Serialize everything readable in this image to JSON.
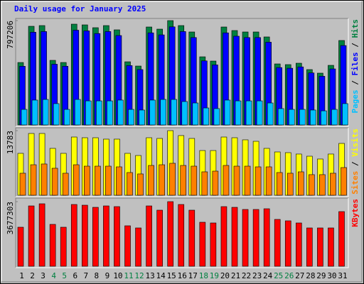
{
  "chart_data": {
    "type": "bar",
    "title": "Daily usage for January 2025",
    "title_color": "#0000FF",
    "categories": [
      "1",
      "2",
      "3",
      "4",
      "5",
      "6",
      "7",
      "8",
      "9",
      "10",
      "11",
      "12",
      "13",
      "14",
      "15",
      "16",
      "17",
      "18",
      "19",
      "20",
      "21",
      "22",
      "23",
      "24",
      "25",
      "26",
      "27",
      "28",
      "29",
      "30",
      "31"
    ],
    "category_colors": [
      "#000000",
      "#000000",
      "#000000",
      "#008040",
      "#008040",
      "#000000",
      "#000000",
      "#000000",
      "#000000",
      "#000000",
      "#008040",
      "#008040",
      "#000000",
      "#000000",
      "#000000",
      "#000000",
      "#000000",
      "#008040",
      "#008040",
      "#000000",
      "#000000",
      "#000000",
      "#000000",
      "#000000",
      "#008040",
      "#008040",
      "#000000",
      "#000000",
      "#000000",
      "#000000",
      "#000000"
    ],
    "legend_separator": " / ",
    "panels": [
      {
        "ylim": [
          0,
          797206
        ],
        "yticks": [
          797206
        ],
        "series": [
          {
            "name": "Hits",
            "color": "#008040",
            "values": [
              477000,
              753800,
              759200,
              493500,
              477200,
              770100,
              764600,
              743000,
              759200,
              726700,
              482600,
              450100,
              748400,
              732100,
              797206,
              759200,
              710400,
              520600,
              488100,
              748400,
              721300,
              710400,
              710400,
              672500,
              466400,
              461000,
              471800,
              423000,
              395900,
              455500,
              645300
            ]
          },
          {
            "name": "Files",
            "color": "#0000FF",
            "values": [
              448400,
              708600,
              713600,
              463900,
              448600,
              723900,
              718700,
              698400,
              713600,
              683100,
              453600,
              423100,
              703500,
              688200,
              749400,
              713600,
              667800,
              489400,
              458800,
              703500,
              678000,
              667800,
              667800,
              632200,
              438400,
              433300,
              443500,
              397600,
              372100,
              428200,
              606600
            ]
          },
          {
            "name": "Pages",
            "color": "#00C0FF",
            "values": [
              119000,
              190000,
              195000,
              163000,
              119000,
              195000,
              184000,
              184000,
              184000,
              190000,
              119000,
              114000,
              190000,
              195000,
              195000,
              179000,
              168000,
              130000,
              125000,
              190000,
              184000,
              184000,
              184000,
              168000,
              125000,
              119000,
              119000,
              114000,
              108000,
              119000,
              163000
            ]
          }
        ]
      },
      {
        "ylim": [
          0,
          13783
        ],
        "yticks": [
          13783
        ],
        "series": [
          {
            "name": "Visits",
            "color": "#FFFF00",
            "values": [
              8940,
              13180,
              13180,
              10000,
              8940,
              12420,
              12270,
              12270,
              11970,
              11970,
              8940,
              8480,
              12270,
              12120,
              13783,
              12730,
              12120,
              9540,
              9540,
              12420,
              12270,
              11820,
              11510,
              10000,
              9240,
              9090,
              8790,
              8330,
              7730,
              8790,
              11060
            ]
          },
          {
            "name": "Sites",
            "color": "#FF8000",
            "values": [
              4700,
              6510,
              6670,
              5760,
              4700,
              6510,
              6210,
              6210,
              6210,
              6060,
              4850,
              4550,
              6360,
              6510,
              6820,
              6360,
              6210,
              5000,
              5150,
              6360,
              6210,
              6210,
              6060,
              6060,
              4850,
              4700,
              5000,
              4400,
              4400,
              4700,
              5910
            ]
          }
        ]
      },
      {
        "ylim": [
          0,
          3677303
        ],
        "yticks": [
          3677303
        ],
        "series": [
          {
            "name": "KBytes",
            "color": "#FF0000",
            "values": [
              2222500,
              3434900,
              3556000,
              2384200,
              2222500,
              3515700,
              3475300,
              3354000,
              3434900,
              3394700,
              2303400,
              2182100,
              3434900,
              3192400,
              3677303,
              3515700,
              3192400,
              2505400,
              2465000,
              3394700,
              3354000,
              3232800,
              3232800,
              3273200,
              2667100,
              2586300,
              2465000,
              2182100,
              2182100,
              2182100,
              3111600
            ]
          }
        ]
      }
    ]
  }
}
